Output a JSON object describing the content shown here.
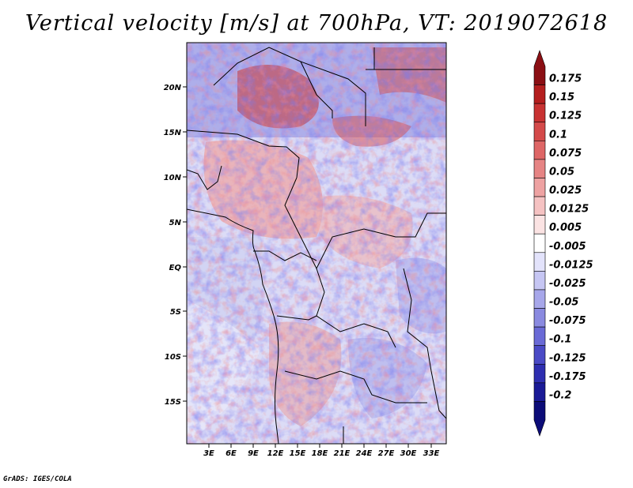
{
  "title": "Vertical velocity [m/s] at 700hPa, VT: 2019072618",
  "footer": "GrADS: IGES/COLA",
  "lat_labels": [
    "20N",
    "15N",
    "10N",
    "5N",
    "EQ",
    "5S",
    "10S",
    "15S"
  ],
  "lon_labels": [
    "3E",
    "6E",
    "9E",
    "12E",
    "15E",
    "18E",
    "21E",
    "24E",
    "27E",
    "30E",
    "33E"
  ],
  "colorbar": {
    "levels": [
      "0.175",
      "0.15",
      "0.125",
      "0.1",
      "0.075",
      "0.05",
      "0.025",
      "0.0125",
      "0.005",
      "-0.005",
      "-0.0125",
      "-0.025",
      "-0.05",
      "-0.075",
      "-0.1",
      "-0.125",
      "-0.175",
      "-0.2"
    ],
    "colors": [
      "#8b0f14",
      "#b41e1e",
      "#c83232",
      "#d44a4a",
      "#de6666",
      "#e68484",
      "#eea2a2",
      "#f5c2c2",
      "#fbe3e3",
      "#ffffff",
      "#e3e3fb",
      "#c6c6f3",
      "#a7a7ea",
      "#8a8ae0",
      "#6a6ad6",
      "#4a4ac6",
      "#2e2eb0",
      "#1a1a96",
      "#0c0c78"
    ]
  },
  "chart_data": {
    "type": "heatmap",
    "title": "Vertical velocity [m/s] at 700hPa, VT: 2019072618",
    "variable": "Vertical velocity",
    "units": "m/s",
    "level": "700hPa",
    "valid_time": "2019072618",
    "lon_range": [
      0,
      35
    ],
    "lat_range": [
      -20,
      25
    ],
    "contour_levels": [
      -0.2,
      -0.175,
      -0.125,
      -0.1,
      -0.075,
      -0.05,
      -0.025,
      -0.0125,
      -0.005,
      0.005,
      0.0125,
      0.025,
      0.05,
      0.075,
      0.1,
      0.125,
      0.15,
      0.175
    ]
  }
}
